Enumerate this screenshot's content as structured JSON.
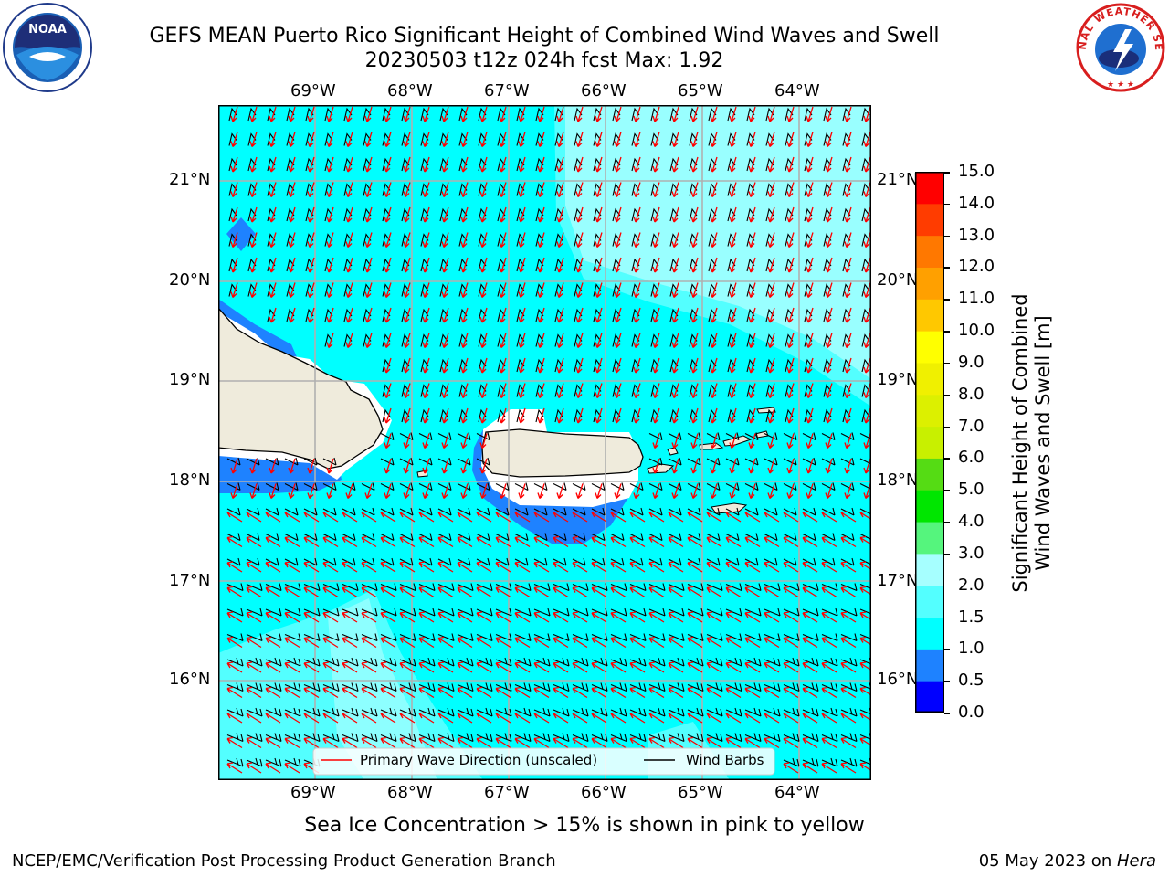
{
  "header": {
    "title_line1": "GEFS MEAN Puerto Rico Significant Height of Combined Wind Waves and Swell",
    "title_line2": "20230503 t12z 024h fcst   Max: 1.92"
  },
  "logos": {
    "left_name": "NOAA",
    "right_name": "NATIONAL WEATHER SERVICE"
  },
  "map": {
    "lon_labels": [
      "69°W",
      "68°W",
      "67°W",
      "66°W",
      "65°W",
      "64°W"
    ],
    "lat_labels": [
      "21°N",
      "20°N",
      "19°N",
      "18°N",
      "17°N",
      "16°N"
    ],
    "land_color": "#efebdc",
    "colors": {
      "band_0_0_5": "#0000ff",
      "band_0_5_1_0": "#1e82ff",
      "band_1_0_1_5": "#00ffff",
      "band_1_5_2_0": "#53ffff",
      "band_2_0_3_0": "#a6ffff"
    }
  },
  "legend": {
    "wave_label": "Primary Wave Direction (unscaled)",
    "barb_label": "Wind Barbs",
    "wave_color": "#ff0000",
    "barb_color": "#000000"
  },
  "colorbar": {
    "label_line1": "Significant Height of Combined",
    "label_line2": "Wind Waves and Swell [m]",
    "ticks": [
      "15.0",
      "14.0",
      "13.0",
      "12.0",
      "11.0",
      "10.0",
      "9.0",
      "8.0",
      "7.0",
      "6.0",
      "5.0",
      "4.0",
      "3.0",
      "2.0",
      "1.5",
      "1.0",
      "0.5",
      "0.0"
    ],
    "bands": [
      {
        "from": 0.0,
        "to": 0.5,
        "color": "#0000ff"
      },
      {
        "from": 0.5,
        "to": 1.0,
        "color": "#1e82ff"
      },
      {
        "from": 1.0,
        "to": 1.5,
        "color": "#00ffff"
      },
      {
        "from": 1.5,
        "to": 2.0,
        "color": "#53ffff"
      },
      {
        "from": 2.0,
        "to": 3.0,
        "color": "#a6ffff"
      },
      {
        "from": 3.0,
        "to": 4.0,
        "color": "#55f57d"
      },
      {
        "from": 4.0,
        "to": 5.0,
        "color": "#00e600"
      },
      {
        "from": 5.0,
        "to": 6.0,
        "color": "#55dc14"
      },
      {
        "from": 6.0,
        "to": 7.0,
        "color": "#c8f000"
      },
      {
        "from": 7.0,
        "to": 8.0,
        "color": "#dcf000"
      },
      {
        "from": 8.0,
        "to": 9.0,
        "color": "#f0f000"
      },
      {
        "from": 9.0,
        "to": 10.0,
        "color": "#ffff00"
      },
      {
        "from": 10.0,
        "to": 11.0,
        "color": "#ffc800"
      },
      {
        "from": 11.0,
        "to": 12.0,
        "color": "#ffa000"
      },
      {
        "from": 12.0,
        "to": 13.0,
        "color": "#ff7800"
      },
      {
        "from": 13.0,
        "to": 14.0,
        "color": "#ff3c00"
      },
      {
        "from": 14.0,
        "to": 15.0,
        "color": "#ff0000"
      }
    ]
  },
  "notes": {
    "sea_ice": "Sea Ice Concentration > 15% is shown in pink to yellow"
  },
  "footer": {
    "left": "NCEP/EMC/Verification Post Processing Product Generation Branch",
    "date": "05 May 2023 on ",
    "host": "Hera"
  }
}
